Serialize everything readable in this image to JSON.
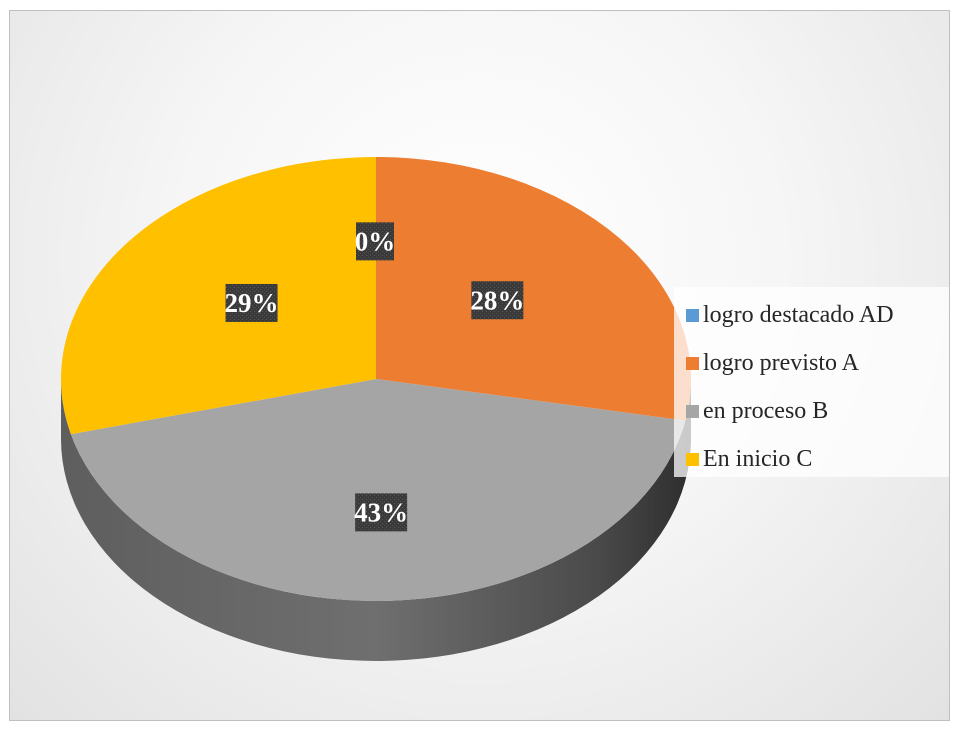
{
  "chart_data": {
    "type": "pie",
    "style": "3d",
    "legend_position": "right",
    "series": [
      {
        "slices": [
          {
            "label": "logro destacado AD",
            "value": 0,
            "data_label": "0%",
            "color": "#5b9bd5"
          },
          {
            "label": "logro previsto A",
            "value": 28,
            "data_label": "28%",
            "color": "#ed7d31"
          },
          {
            "label": "en proceso B",
            "value": 43,
            "data_label": "43%",
            "color": "#a5a5a5"
          },
          {
            "label": "En inicio C",
            "value": 29,
            "data_label": "29%",
            "color": "#ffc000"
          }
        ]
      }
    ]
  }
}
